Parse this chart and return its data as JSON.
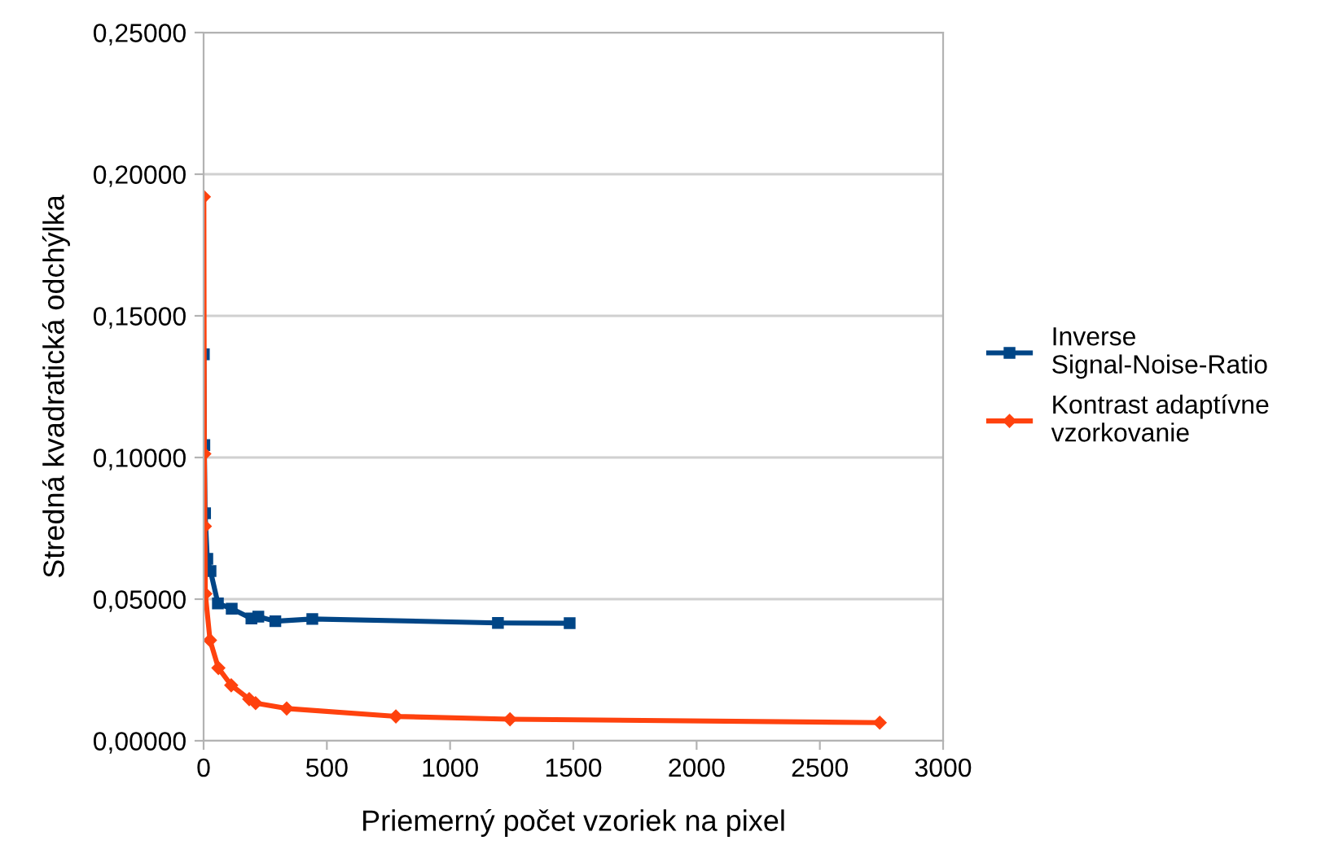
{
  "chart_data": {
    "type": "line",
    "xlabel": "Priemerný počet vzoriek na pixel",
    "ylabel": "Stredná kvadratická odchýlka",
    "xlim": [
      0,
      3000
    ],
    "xticks": [
      0,
      500,
      1000,
      1500,
      2000,
      2500,
      3000
    ],
    "ylim": [
      0,
      0.25
    ],
    "yticks": [
      {
        "value": 0,
        "label": "0,00000"
      },
      {
        "value": 0.05,
        "label": "0,05000"
      },
      {
        "value": 0.1,
        "label": "0,10000"
      },
      {
        "value": 0.15,
        "label": "0,15000"
      },
      {
        "value": 0.2,
        "label": "0,20000"
      },
      {
        "value": 0.25,
        "label": "0,25000"
      }
    ],
    "grid": "y",
    "legend": "right",
    "series": [
      {
        "name": "Inverse Signal-Noise-Ratio",
        "color": "#004586",
        "marker": "square",
        "x": [
          1,
          3,
          6,
          15,
          28,
          58,
          114,
          194,
          222,
          291,
          441,
          1194,
          1485
        ],
        "values": [
          0.1364,
          0.1044,
          0.0803,
          0.0642,
          0.0599,
          0.0485,
          0.0466,
          0.0432,
          0.0438,
          0.0422,
          0.043,
          0.0416,
          0.0415
        ]
      },
      {
        "name": "Kontrast adaptívne vzorkovanie",
        "color": "#ff420e",
        "marker": "diamond",
        "x": [
          1,
          3,
          5,
          7,
          26,
          60,
          112,
          185,
          211,
          337,
          780,
          1243,
          2743
        ],
        "values": [
          0.192,
          0.1013,
          0.0757,
          0.0519,
          0.0355,
          0.0257,
          0.0196,
          0.0147,
          0.0133,
          0.0114,
          0.0086,
          0.0076,
          0.0064
        ]
      }
    ]
  }
}
